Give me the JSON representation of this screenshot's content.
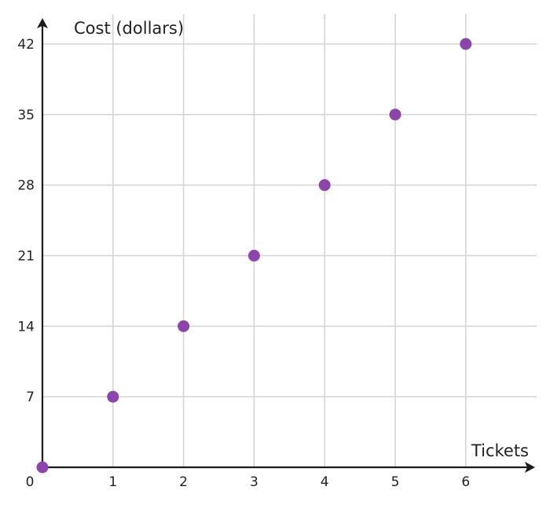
{
  "chart_data": {
    "type": "scatter",
    "title": "",
    "xlabel": "Tickets",
    "ylabel": "Cost (dollars)",
    "xlim": [
      0,
      6
    ],
    "ylim": [
      0,
      42
    ],
    "x_ticks": [
      "1",
      "2",
      "3",
      "4",
      "5",
      "6"
    ],
    "y_ticks": [
      "7",
      "14",
      "21",
      "28",
      "35",
      "42"
    ],
    "origin_label": "0",
    "grid": true,
    "point_color": "#8e44ad",
    "points": [
      {
        "x": 0,
        "y": 0
      },
      {
        "x": 1,
        "y": 7
      },
      {
        "x": 2,
        "y": 14
      },
      {
        "x": 3,
        "y": 21
      },
      {
        "x": 4,
        "y": 28
      },
      {
        "x": 5,
        "y": 35
      },
      {
        "x": 6,
        "y": 42
      }
    ]
  }
}
